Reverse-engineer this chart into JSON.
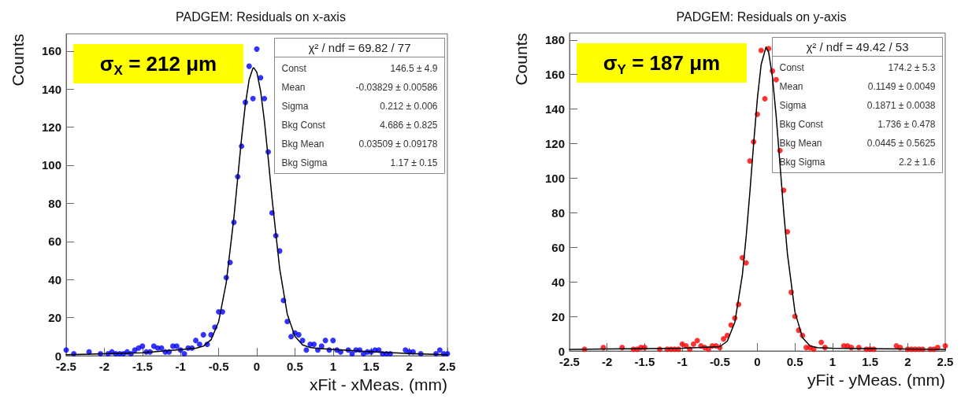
{
  "chart_data": [
    {
      "type": "scatter",
      "title": "PADGEM: Residuals on x-axis",
      "xlabel": "xFit - xMeas. (mm)",
      "ylabel": "Counts",
      "xlim": [
        -2.5,
        2.5
      ],
      "xticks": [
        -2.5,
        -2,
        -1.5,
        -1,
        -0.5,
        0,
        0.5,
        1,
        1.5,
        2,
        2.5
      ],
      "ylim": [
        0,
        169
      ],
      "yticks": [
        0,
        20,
        40,
        60,
        80,
        100,
        120,
        140,
        160
      ],
      "grid": false,
      "marker": "circle",
      "annotations": [
        "σ$_{X}$ = 212 μm",
        "χ² / ndf = 69.82 / 77",
        "Const",
        "146.5 ± 4.9",
        "Mean",
        "-0.03829 ± 0.00586",
        "Sigma",
        "0.212 ± 0.006",
        "Bkg Const",
        "4.686 ± 0.825",
        "Bkg Mean",
        "0.03509 ± 0.09178",
        "Bkg Sigma",
        "1.17 ± 0.15"
      ],
      "series": [
        {
          "color": "#0000ff",
          "x": [
            -2.5,
            -2.4,
            -2.2,
            -2.05,
            -1.95,
            -1.9,
            -1.85,
            -1.8,
            -1.75,
            -1.7,
            -1.65,
            -1.6,
            -1.55,
            -1.5,
            -1.45,
            -1.4,
            -1.35,
            -1.3,
            -1.25,
            -1.2,
            -1.15,
            -1.1,
            -1.05,
            -1,
            -0.95,
            -0.9,
            -0.85,
            -0.8,
            -0.75,
            -0.7,
            -0.65,
            -0.6,
            -0.55,
            -0.5,
            -0.45,
            -0.4,
            -0.35,
            -0.3,
            -0.25,
            -0.2,
            -0.15,
            -0.1,
            -0.05,
            0,
            0.05,
            0.1,
            0.15,
            0.2,
            0.25,
            0.3,
            0.35,
            0.4,
            0.45,
            0.5,
            0.55,
            0.6,
            0.65,
            0.7,
            0.75,
            0.8,
            0.85,
            0.9,
            0.95,
            1,
            1.05,
            1.1,
            1.2,
            1.25,
            1.3,
            1.35,
            1.4,
            1.45,
            1.5,
            1.55,
            1.6,
            1.65,
            1.7,
            1.75,
            1.95,
            2,
            2.05,
            2.15,
            2.35,
            2.4,
            2.45,
            2.5
          ],
          "values": [
            3,
            1,
            2,
            1,
            1,
            2,
            1,
            1,
            1,
            2,
            1,
            3,
            4,
            5,
            2,
            2,
            5,
            4,
            4,
            2,
            2,
            5,
            5,
            3,
            1,
            4,
            4,
            8,
            6,
            11,
            6,
            11,
            15,
            23,
            23,
            41,
            49,
            70,
            94,
            110,
            133,
            152,
            135,
            161,
            146,
            135,
            107,
            75,
            63,
            55,
            29,
            18,
            10,
            12,
            11,
            8,
            3,
            6,
            6,
            3,
            5,
            8,
            3,
            8,
            3,
            2,
            3,
            1,
            3,
            3,
            1,
            2,
            2,
            3,
            3,
            1,
            1,
            1,
            3,
            2,
            2,
            1,
            1,
            3,
            1,
            1
          ]
        },
        {
          "type": "line",
          "color": "#000000",
          "marker": "none",
          "x": [
            -2.5,
            -2,
            -1.5,
            -1,
            -0.8,
            -0.7,
            -0.6,
            -0.5,
            -0.4,
            -0.3,
            -0.2,
            -0.15,
            -0.1,
            -0.05,
            -0.04,
            0,
            0.05,
            0.1,
            0.15,
            0.2,
            0.3,
            0.4,
            0.5,
            0.6,
            0.7,
            0.8,
            1,
            1.5,
            2,
            2.5
          ],
          "values": [
            0.5,
            1,
            1.6,
            3.2,
            3.9,
            5,
            8.4,
            17.9,
            38.5,
            72.7,
            114,
            132,
            145,
            151,
            151.2,
            148.9,
            139,
            123.2,
            103.5,
            82.6,
            45.7,
            21.8,
            10.2,
            5.7,
            4.3,
            3.8,
            3.3,
            2.1,
            1.1,
            0.5
          ]
        }
      ]
    },
    {
      "type": "scatter",
      "title": "PADGEM: Residuals on y-axis",
      "xlabel": "yFit - yMeas. (mm)",
      "ylabel": "Counts",
      "xlim": [
        -2.5,
        2.5
      ],
      "xticks": [
        -2.5,
        -2,
        -1.5,
        -1,
        -0.5,
        0,
        0.5,
        1,
        1.5,
        2,
        2.5
      ],
      "ylim": [
        0,
        184
      ],
      "yticks": [
        0,
        20,
        40,
        60,
        80,
        100,
        120,
        140,
        160,
        180
      ],
      "grid": false,
      "marker": "circle",
      "annotations": [
        "σ$_{Y}$ = 187 μm",
        "χ² / ndf = 49.42 / 53",
        "Const",
        "174.2 ± 5.3",
        "Mean",
        "0.1149 ± 0.0049",
        "Sigma",
        "0.1871 ± 0.0038",
        "Bkg Const",
        "1.736 ± 0.478",
        "Bkg Mean",
        "0.0445 ± 0.5625",
        "Bkg Sigma",
        "2.2 ± 1.6"
      ],
      "series": [
        {
          "color": "#ff0000",
          "x": [
            -2.3,
            -2.05,
            -1.8,
            -1.65,
            -1.6,
            -1.55,
            -1.5,
            -1.3,
            -1.2,
            -1.15,
            -1.1,
            -1.05,
            -1,
            -0.95,
            -0.9,
            -0.85,
            -0.8,
            -0.75,
            -0.7,
            -0.65,
            -0.6,
            -0.55,
            -0.5,
            -0.45,
            -0.4,
            -0.35,
            -0.3,
            -0.25,
            -0.2,
            -0.15,
            -0.1,
            -0.05,
            0,
            0.05,
            0.1,
            0.15,
            0.2,
            0.25,
            0.3,
            0.35,
            0.4,
            0.45,
            0.5,
            0.55,
            0.6,
            0.65,
            0.7,
            0.75,
            0.85,
            0.9,
            1.15,
            1.2,
            1.25,
            1.35,
            1.45,
            1.5,
            1.55,
            1.85,
            1.9,
            2,
            2.05,
            2.1,
            2.15,
            2.2,
            2.3,
            2.35,
            2.4,
            2.5
          ],
          "values": [
            1,
            2,
            2,
            1,
            1,
            2,
            2,
            1,
            1,
            1,
            1,
            1,
            4,
            3,
            1,
            4,
            6,
            3,
            2,
            1,
            3,
            3,
            2,
            7,
            9,
            15,
            19,
            27,
            54,
            51,
            110,
            121,
            137,
            174,
            146,
            175,
            162,
            157,
            116,
            93,
            69,
            34,
            20,
            12,
            9,
            2,
            2,
            1,
            5,
            2,
            3,
            3,
            2,
            2,
            1,
            1,
            1,
            3,
            2,
            1,
            1,
            1,
            1,
            1,
            1,
            1,
            2,
            3
          ]
        },
        {
          "type": "line",
          "color": "#000000",
          "marker": "none",
          "x": [
            -2.5,
            -1.5,
            -1,
            -0.5,
            -0.4,
            -0.3,
            -0.2,
            -0.15,
            -0.1,
            -0.05,
            0,
            0.05,
            0.115,
            0.15,
            0.2,
            0.25,
            0.3,
            0.35,
            0.4,
            0.5,
            0.6,
            0.7,
            0.8,
            1,
            1.5,
            2.5
          ],
          "values": [
            0.9,
            1.4,
            1.6,
            2.5,
            5.7,
            16.6,
            44,
            65.8,
            91.8,
            119.9,
            146,
            165.8,
            175.9,
            172.9,
            158.8,
            136,
            108.5,
            80.8,
            56.2,
            22.6,
            7.7,
            3,
            1.9,
            1.6,
            1.4,
            0.9
          ]
        }
      ]
    }
  ]
}
